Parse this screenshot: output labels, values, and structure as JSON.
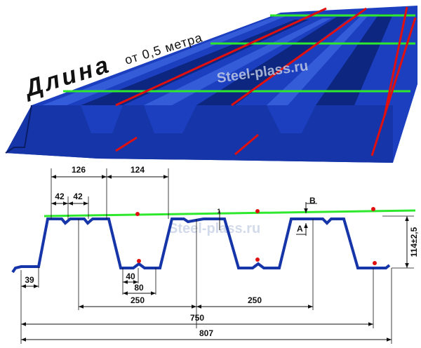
{
  "title": {
    "length": "Длина",
    "from": "от 0,5 метра"
  },
  "watermarks": [
    "Steel-plass.ru",
    "Steel-plass.ru"
  ],
  "dimensions": {
    "pitch_top": "126",
    "rib_top": "124",
    "flat_a": "42",
    "flat_b": "42",
    "edge": "39",
    "valley_inner": "40",
    "valley": "80",
    "step_left": "250",
    "step_right": "250",
    "working_width": "750",
    "total_width": "807",
    "height": "114±2,5"
  },
  "markers": {
    "a": "A",
    "b": "B",
    "thickness": "1"
  }
}
